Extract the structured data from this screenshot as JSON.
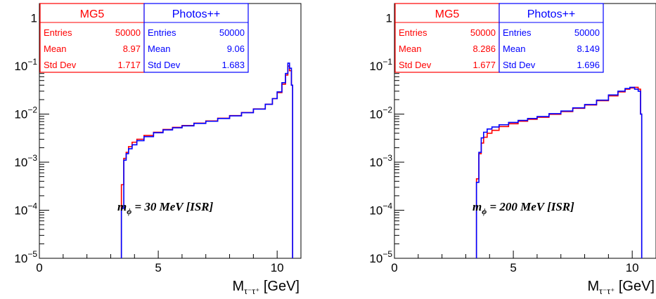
{
  "chart_data": [
    {
      "type": "line",
      "log_y": true,
      "xlim": [
        0,
        11
      ],
      "ylim": [
        1e-05,
        2
      ],
      "x_ticks": [
        "0",
        "5",
        "10"
      ],
      "x_tick_values": [
        0,
        5,
        10
      ],
      "y_ticks": [
        "1",
        "10",
        "10",
        "10",
        "10",
        "10"
      ],
      "y_tick_exponents": [
        "",
        "−1",
        "−2",
        "−3",
        "−4",
        "−5"
      ],
      "y_tick_values": [
        1,
        0.1,
        0.01,
        0.001,
        0.0001,
        1e-05
      ],
      "xlabel": {
        "main": "M",
        "sub": "τ⁻τ⁺",
        "unit": " [GeV]"
      },
      "annotation": {
        "prefix": "m",
        "sub": "ϕ",
        "text": " = 30 MeV [ISR]"
      },
      "series": [
        {
          "name": "MG5",
          "color": "#ff0000",
          "points": [
            [
              3.45,
              0.00034
            ],
            [
              3.55,
              0.0012
            ],
            [
              3.65,
              0.0016
            ],
            [
              3.75,
              0.0021
            ],
            [
              3.9,
              0.0026
            ],
            [
              4.1,
              0.003
            ],
            [
              4.4,
              0.0036
            ],
            [
              4.8,
              0.0042
            ],
            [
              5.2,
              0.0048
            ],
            [
              5.6,
              0.0053
            ],
            [
              6.0,
              0.0058
            ],
            [
              6.5,
              0.0065
            ],
            [
              7.0,
              0.0072
            ],
            [
              7.5,
              0.0082
            ],
            [
              8.0,
              0.0093
            ],
            [
              8.5,
              0.0108
            ],
            [
              9.0,
              0.0128
            ],
            [
              9.5,
              0.016
            ],
            [
              9.8,
              0.021
            ],
            [
              10.0,
              0.028
            ],
            [
              10.2,
              0.042
            ],
            [
              10.35,
              0.065
            ],
            [
              10.45,
              0.1
            ],
            [
              10.52,
              0.08
            ],
            [
              10.6,
              0.04
            ]
          ]
        },
        {
          "name": "Photos++",
          "color": "#0000ff",
          "points": [
            [
              3.45,
              0.00011
            ],
            [
              3.55,
              0.0011
            ],
            [
              3.65,
              0.0015
            ],
            [
              3.75,
              0.0019
            ],
            [
              3.9,
              0.0023
            ],
            [
              4.1,
              0.0028
            ],
            [
              4.4,
              0.0034
            ],
            [
              4.8,
              0.0041
            ],
            [
              5.2,
              0.0047
            ],
            [
              5.6,
              0.0052
            ],
            [
              6.0,
              0.0057
            ],
            [
              6.5,
              0.0064
            ],
            [
              7.0,
              0.0071
            ],
            [
              7.5,
              0.0081
            ],
            [
              8.0,
              0.0092
            ],
            [
              8.5,
              0.0107
            ],
            [
              9.0,
              0.0127
            ],
            [
              9.5,
              0.016
            ],
            [
              9.8,
              0.021
            ],
            [
              10.0,
              0.029
            ],
            [
              10.2,
              0.045
            ],
            [
              10.35,
              0.07
            ],
            [
              10.45,
              0.115
            ],
            [
              10.52,
              0.09
            ],
            [
              10.6,
              0.04
            ]
          ]
        }
      ],
      "stats": [
        {
          "title": "MG5",
          "color": "#ff0000",
          "rows": [
            [
              "Entries",
              "50000"
            ],
            [
              "Mean",
              "8.97"
            ],
            [
              "Std Dev",
              "1.717"
            ]
          ]
        },
        {
          "title": "Photos++",
          "color": "#0000ff",
          "rows": [
            [
              "Entries",
              "50000"
            ],
            [
              "Mean",
              "9.06"
            ],
            [
              "Std Dev",
              "1.683"
            ]
          ]
        }
      ]
    },
    {
      "type": "line",
      "log_y": true,
      "xlim": [
        0,
        11
      ],
      "ylim": [
        1e-05,
        2
      ],
      "x_ticks": [
        "0",
        "5",
        "10"
      ],
      "x_tick_values": [
        0,
        5,
        10
      ],
      "y_ticks": [
        "1",
        "10",
        "10",
        "10",
        "10",
        "10"
      ],
      "y_tick_exponents": [
        "",
        "−1",
        "−2",
        "−3",
        "−4",
        "−5"
      ],
      "y_tick_values": [
        1,
        0.1,
        0.01,
        0.001,
        0.0001,
        1e-05
      ],
      "xlabel": {
        "main": "M",
        "sub": "τ⁻τ⁺",
        "unit": " [GeV]"
      },
      "annotation": {
        "prefix": "m",
        "sub": "ϕ",
        "text": " = 200 MeV [ISR]"
      },
      "series": [
        {
          "name": "MG5",
          "color": "#ff0000",
          "points": [
            [
              3.45,
              0.00045
            ],
            [
              3.55,
              0.0015
            ],
            [
              3.65,
              0.0025
            ],
            [
              3.75,
              0.0033
            ],
            [
              3.9,
              0.004
            ],
            [
              4.1,
              0.0046
            ],
            [
              4.4,
              0.0055
            ],
            [
              4.8,
              0.0063
            ],
            [
              5.2,
              0.0071
            ],
            [
              5.6,
              0.0078
            ],
            [
              6.0,
              0.0086
            ],
            [
              6.5,
              0.0099
            ],
            [
              7.0,
              0.0113
            ],
            [
              7.5,
              0.0132
            ],
            [
              8.0,
              0.0155
            ],
            [
              8.5,
              0.019
            ],
            [
              9.0,
              0.024
            ],
            [
              9.4,
              0.029
            ],
            [
              9.7,
              0.033
            ],
            [
              9.9,
              0.035
            ],
            [
              10.1,
              0.036
            ],
            [
              10.25,
              0.033
            ],
            [
              10.35,
              0.01
            ]
          ]
        },
        {
          "name": "Photos++",
          "color": "#0000ff",
          "points": [
            [
              3.45,
              0.00038
            ],
            [
              3.55,
              0.0016
            ],
            [
              3.65,
              0.0032
            ],
            [
              3.75,
              0.0042
            ],
            [
              3.9,
              0.0049
            ],
            [
              4.1,
              0.0054
            ],
            [
              4.4,
              0.006
            ],
            [
              4.8,
              0.0067
            ],
            [
              5.2,
              0.0074
            ],
            [
              5.6,
              0.0081
            ],
            [
              6.0,
              0.0089
            ],
            [
              6.5,
              0.0102
            ],
            [
              7.0,
              0.0116
            ],
            [
              7.5,
              0.0135
            ],
            [
              8.0,
              0.0158
            ],
            [
              8.5,
              0.0195
            ],
            [
              9.0,
              0.025
            ],
            [
              9.4,
              0.03
            ],
            [
              9.7,
              0.034
            ],
            [
              9.9,
              0.036
            ],
            [
              10.1,
              0.033
            ],
            [
              10.25,
              0.03
            ],
            [
              10.35,
              0.01
            ]
          ]
        }
      ],
      "stats": [
        {
          "title": "MG5",
          "color": "#ff0000",
          "rows": [
            [
              "Entries",
              "50000"
            ],
            [
              "Mean",
              "8.286"
            ],
            [
              "Std Dev",
              "1.677"
            ]
          ]
        },
        {
          "title": "Photos++",
          "color": "#0000ff",
          "rows": [
            [
              "Entries",
              "50000"
            ],
            [
              "Mean",
              "8.149"
            ],
            [
              "Std Dev",
              "1.696"
            ]
          ]
        }
      ]
    }
  ]
}
